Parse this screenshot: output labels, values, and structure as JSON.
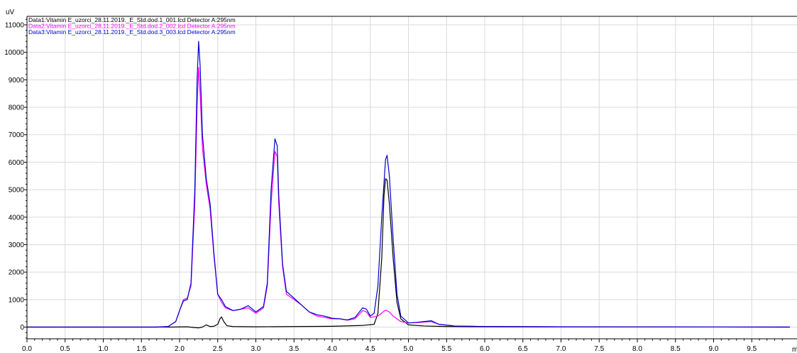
{
  "chart_data": {
    "type": "line",
    "ylabel": "uV",
    "xlabel": "m",
    "xlim": [
      0,
      10
    ],
    "ylim": [
      -700,
      11400
    ],
    "grid": true,
    "legend_placement": "top-left",
    "x_ticks": [
      "0.0",
      "0.5",
      "1.0",
      "1.5",
      "2.0",
      "2.5",
      "3.0",
      "3.5",
      "4.0",
      "4.5",
      "5.0",
      "5.5",
      "6.0",
      "6.5",
      "7.0",
      "7.5",
      "8.0",
      "8.5",
      "9.0",
      "9.5"
    ],
    "y_ticks": [
      "0",
      "1000",
      "2000",
      "3000",
      "4000",
      "5000",
      "6000",
      "7000",
      "8000",
      "9000",
      "10000",
      "11000"
    ],
    "series": [
      {
        "name": "Data1:Vitamin E_uzorci_28.11.2019._E_Std.dod.1_001.lcd Detector A:295nm",
        "color": "#000000",
        "points": [
          [
            0,
            0
          ],
          [
            1.9,
            0
          ],
          [
            2.1,
            10
          ],
          [
            2.2,
            -20
          ],
          [
            2.25,
            -30
          ],
          [
            2.3,
            0
          ],
          [
            2.35,
            80
          ],
          [
            2.4,
            20
          ],
          [
            2.45,
            30
          ],
          [
            2.5,
            100
          ],
          [
            2.53,
            300
          ],
          [
            2.55,
            370
          ],
          [
            2.58,
            200
          ],
          [
            2.62,
            50
          ],
          [
            2.7,
            20
          ],
          [
            3.0,
            10
          ],
          [
            3.5,
            20
          ],
          [
            4.0,
            30
          ],
          [
            4.4,
            60
          ],
          [
            4.55,
            100
          ],
          [
            4.6,
            500
          ],
          [
            4.65,
            2500
          ],
          [
            4.68,
            4800
          ],
          [
            4.7,
            5400
          ],
          [
            4.72,
            5350
          ],
          [
            4.75,
            4500
          ],
          [
            4.8,
            2500
          ],
          [
            4.85,
            900
          ],
          [
            4.9,
            300
          ],
          [
            5.0,
            80
          ],
          [
            5.2,
            40
          ],
          [
            5.5,
            20
          ],
          [
            6.0,
            10
          ],
          [
            7.0,
            5
          ],
          [
            8.0,
            5
          ],
          [
            10,
            0
          ]
        ]
      },
      {
        "name": "Data2:Vitamin E_uzorci_28.11.2019._E_Std.dod.2_002.lcd Detector A:295nm",
        "color": "#ff00ff",
        "points": [
          [
            0,
            0
          ],
          [
            1.7,
            0
          ],
          [
            1.85,
            20
          ],
          [
            1.95,
            200
          ],
          [
            2.0,
            600
          ],
          [
            2.05,
            1000
          ],
          [
            2.1,
            1050
          ],
          [
            2.15,
            1500
          ],
          [
            2.2,
            4500
          ],
          [
            2.23,
            8000
          ],
          [
            2.25,
            9450
          ],
          [
            2.27,
            8500
          ],
          [
            2.3,
            6500
          ],
          [
            2.35,
            5200
          ],
          [
            2.4,
            4300
          ],
          [
            2.45,
            2600
          ],
          [
            2.5,
            1200
          ],
          [
            2.55,
            900
          ],
          [
            2.6,
            700
          ],
          [
            2.7,
            600
          ],
          [
            2.8,
            650
          ],
          [
            2.9,
            700
          ],
          [
            3.0,
            500
          ],
          [
            3.1,
            700
          ],
          [
            3.15,
            1500
          ],
          [
            3.2,
            4500
          ],
          [
            3.25,
            6400
          ],
          [
            3.28,
            6200
          ],
          [
            3.3,
            4500
          ],
          [
            3.35,
            2200
          ],
          [
            3.4,
            1200
          ],
          [
            3.5,
            1000
          ],
          [
            3.6,
            800
          ],
          [
            3.7,
            550
          ],
          [
            3.8,
            400
          ],
          [
            3.9,
            350
          ],
          [
            4.0,
            300
          ],
          [
            4.1,
            300
          ],
          [
            4.2,
            250
          ],
          [
            4.3,
            300
          ],
          [
            4.4,
            600
          ],
          [
            4.45,
            550
          ],
          [
            4.5,
            350
          ],
          [
            4.6,
            400
          ],
          [
            4.7,
            620
          ],
          [
            4.75,
            550
          ],
          [
            4.8,
            400
          ],
          [
            4.9,
            200
          ],
          [
            5.0,
            150
          ],
          [
            5.1,
            160
          ],
          [
            5.2,
            180
          ],
          [
            5.3,
            200
          ],
          [
            5.4,
            100
          ],
          [
            5.6,
            40
          ],
          [
            6.0,
            20
          ],
          [
            7.0,
            10
          ],
          [
            8.0,
            5
          ],
          [
            10,
            0
          ]
        ]
      },
      {
        "name": "Data3:Vitamin E_uzorci_28.11.2019._E_Std.dod.3_003.lcd Detector A:295nm",
        "color": "#0000cc",
        "points": [
          [
            0,
            0
          ],
          [
            1.7,
            0
          ],
          [
            1.85,
            20
          ],
          [
            1.95,
            200
          ],
          [
            2.0,
            600
          ],
          [
            2.05,
            950
          ],
          [
            2.1,
            1000
          ],
          [
            2.15,
            1600
          ],
          [
            2.2,
            5000
          ],
          [
            2.23,
            9000
          ],
          [
            2.25,
            10400
          ],
          [
            2.27,
            9500
          ],
          [
            2.3,
            7000
          ],
          [
            2.35,
            5400
          ],
          [
            2.4,
            4500
          ],
          [
            2.45,
            2700
          ],
          [
            2.5,
            1200
          ],
          [
            2.55,
            1000
          ],
          [
            2.6,
            750
          ],
          [
            2.7,
            600
          ],
          [
            2.8,
            650
          ],
          [
            2.9,
            780
          ],
          [
            3.0,
            550
          ],
          [
            3.1,
            750
          ],
          [
            3.15,
            1600
          ],
          [
            3.2,
            5000
          ],
          [
            3.25,
            6850
          ],
          [
            3.28,
            6600
          ],
          [
            3.3,
            4800
          ],
          [
            3.35,
            2300
          ],
          [
            3.4,
            1300
          ],
          [
            3.5,
            1050
          ],
          [
            3.6,
            800
          ],
          [
            3.7,
            550
          ],
          [
            3.8,
            450
          ],
          [
            3.9,
            400
          ],
          [
            4.0,
            320
          ],
          [
            4.1,
            300
          ],
          [
            4.2,
            260
          ],
          [
            4.3,
            350
          ],
          [
            4.4,
            700
          ],
          [
            4.45,
            650
          ],
          [
            4.5,
            400
          ],
          [
            4.55,
            500
          ],
          [
            4.6,
            1500
          ],
          [
            4.65,
            4000
          ],
          [
            4.7,
            6100
          ],
          [
            4.72,
            6250
          ],
          [
            4.75,
            5500
          ],
          [
            4.8,
            3200
          ],
          [
            4.85,
            1200
          ],
          [
            4.9,
            400
          ],
          [
            5.0,
            150
          ],
          [
            5.1,
            170
          ],
          [
            5.2,
            200
          ],
          [
            5.3,
            230
          ],
          [
            5.4,
            100
          ],
          [
            5.6,
            40
          ],
          [
            6.0,
            20
          ],
          [
            7.0,
            10
          ],
          [
            8.0,
            5
          ],
          [
            10,
            0
          ]
        ]
      }
    ]
  }
}
